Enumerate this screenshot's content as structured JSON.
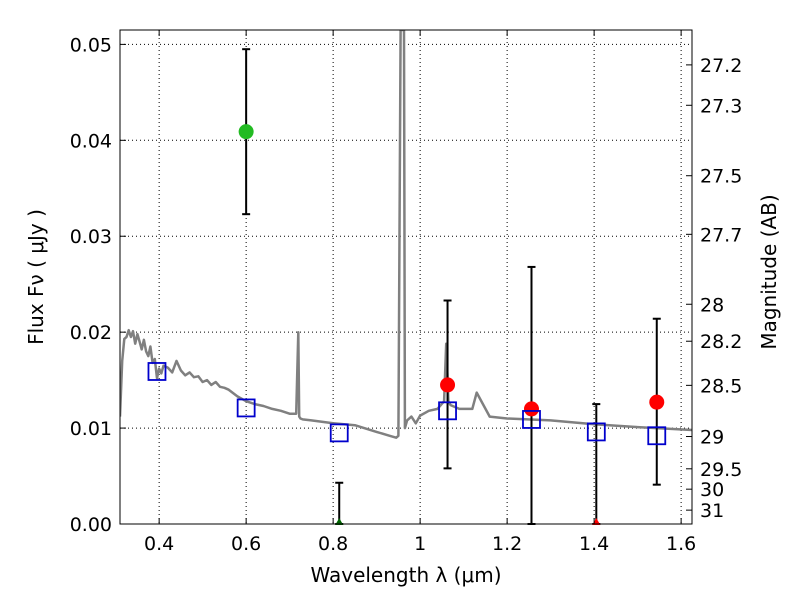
{
  "chart_data": {
    "type": "scatter",
    "xlabel": "Wavelength  λ (μm)",
    "ylabel": "Flux  Fν  ( μJy )",
    "ylabel_right": "Magnitude (AB)",
    "xlim": [
      0.31,
      1.625
    ],
    "ylim": [
      0.0,
      0.0515
    ],
    "grid": true,
    "x_ticks": [
      0.4,
      0.6,
      0.8,
      1.0,
      1.2,
      1.4,
      1.6
    ],
    "x_tick_labels": [
      "0.4",
      "0.6",
      "0.8",
      "1",
      "1.2",
      "1.4",
      "1.6"
    ],
    "y_ticks": [
      0.0,
      0.01,
      0.02,
      0.03,
      0.04,
      0.05
    ],
    "y_tick_labels": [
      "0.00",
      "0.01",
      "0.02",
      "0.03",
      "0.04",
      "0.05"
    ],
    "right_ticks": [
      27.2,
      27.3,
      27.5,
      27.7,
      28,
      28.2,
      28.5,
      29,
      29.5,
      30,
      31
    ],
    "right_tick_labels": [
      "27.2",
      "27.3",
      "27.5",
      "27.7",
      "28",
      "28.2",
      "28.5",
      "29",
      "29.5",
      "30",
      "31"
    ],
    "colors": {
      "spectrum": "#808080",
      "green": "#22bb22",
      "red": "#ff0000",
      "square": "#0000cc",
      "errorbar": "#000000",
      "dark_green": "#006400"
    },
    "series": [
      {
        "name": "Model spectrum",
        "kind": "line",
        "x": [
          0.31,
          0.315,
          0.32,
          0.325,
          0.33,
          0.335,
          0.34,
          0.345,
          0.35,
          0.355,
          0.36,
          0.365,
          0.37,
          0.375,
          0.38,
          0.385,
          0.39,
          0.395,
          0.4,
          0.405,
          0.41,
          0.42,
          0.43,
          0.44,
          0.45,
          0.46,
          0.47,
          0.48,
          0.49,
          0.5,
          0.51,
          0.52,
          0.53,
          0.54,
          0.55,
          0.56,
          0.58,
          0.6,
          0.62,
          0.64,
          0.66,
          0.68,
          0.7,
          0.715,
          0.72,
          0.722,
          0.725,
          0.73,
          0.75,
          0.8,
          0.85,
          0.9,
          0.93,
          0.945,
          0.95,
          0.955,
          0.958,
          0.96,
          0.963,
          0.965,
          0.97,
          0.98,
          0.99,
          1.0,
          1.02,
          1.04,
          1.055,
          1.06,
          1.065,
          1.07,
          1.09,
          1.12,
          1.13,
          1.16,
          1.2,
          1.3,
          1.4,
          1.5,
          1.625
        ],
        "y": [
          0.0112,
          0.017,
          0.0193,
          0.0195,
          0.0202,
          0.0195,
          0.0201,
          0.0188,
          0.0198,
          0.019,
          0.0182,
          0.0192,
          0.018,
          0.0175,
          0.0185,
          0.0168,
          0.0172,
          0.0152,
          0.0162,
          0.0157,
          0.0165,
          0.0163,
          0.0158,
          0.017,
          0.016,
          0.0155,
          0.0158,
          0.0153,
          0.0154,
          0.0148,
          0.015,
          0.0145,
          0.0148,
          0.0143,
          0.0142,
          0.014,
          0.0133,
          0.0128,
          0.0125,
          0.0123,
          0.012,
          0.0118,
          0.0115,
          0.0115,
          0.02,
          0.0112,
          0.011,
          0.0109,
          0.0108,
          0.0105,
          0.0103,
          0.0096,
          0.0092,
          0.009,
          0.0092,
          0.0515,
          0.0515,
          0.0515,
          0.0515,
          0.01,
          0.0108,
          0.0112,
          0.0105,
          0.0113,
          0.0118,
          0.012,
          0.0128,
          0.0188,
          0.0128,
          0.0124,
          0.012,
          0.012,
          0.0137,
          0.0112,
          0.011,
          0.0108,
          0.0104,
          0.0101,
          0.0098
        ]
      },
      {
        "name": "Green detections",
        "kind": "points",
        "marker": "circle",
        "color_key": "green",
        "points": [
          {
            "x": 0.6,
            "y": 0.0409,
            "ylo": 0.0323,
            "yhi": 0.0495
          }
        ]
      },
      {
        "name": "Red detections",
        "kind": "points",
        "marker": "circle",
        "color_key": "red",
        "points": [
          {
            "x": 1.063,
            "y": 0.0145,
            "ylo": 0.0058,
            "yhi": 0.0233
          },
          {
            "x": 1.256,
            "y": 0.012,
            "ylo": 0.0,
            "yhi": 0.0268
          },
          {
            "x": 1.544,
            "y": 0.0127,
            "ylo": 0.0041,
            "yhi": 0.0214
          }
        ]
      },
      {
        "name": "Non-detection errorbars",
        "kind": "points",
        "marker": "triangle",
        "points": [
          {
            "x": 0.814,
            "y": 0.0,
            "ylo": 0.0,
            "yhi": 0.0043,
            "color_key": "dark_green"
          },
          {
            "x": 1.405,
            "y": 0.0,
            "ylo": 0.0,
            "yhi": 0.0125,
            "color_key": "red"
          }
        ]
      },
      {
        "name": "Model photometry",
        "kind": "points",
        "marker": "square",
        "color_key": "square",
        "points": [
          {
            "x": 0.395,
            "y": 0.0159
          },
          {
            "x": 0.6,
            "y": 0.0121
          },
          {
            "x": 0.814,
            "y": 0.0095
          },
          {
            "x": 1.063,
            "y": 0.0118
          },
          {
            "x": 1.256,
            "y": 0.0109
          },
          {
            "x": 1.405,
            "y": 0.0096
          },
          {
            "x": 1.544,
            "y": 0.0092
          }
        ]
      }
    ]
  }
}
